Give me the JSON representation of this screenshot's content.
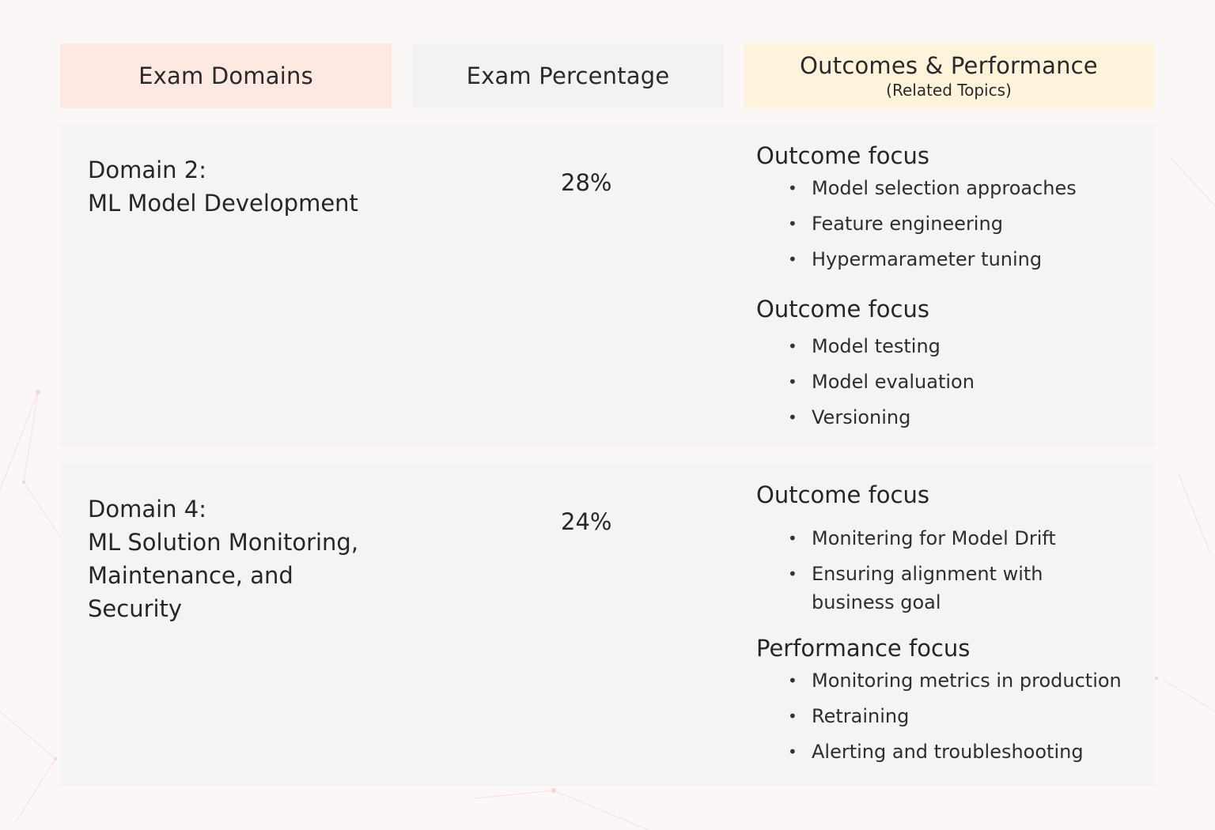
{
  "header": {
    "col1": "Exam Domains",
    "col2": "Exam Percentage",
    "col3_title": "Outcomes & Performance",
    "col3_subtitle": "(Related Topics)"
  },
  "rows": [
    {
      "domain_number": "Domain 2:",
      "domain_title": "ML Model Development",
      "percentage": "28%",
      "groups": [
        {
          "title": "Outcome focus",
          "items": [
            "Model selection approaches",
            "Feature engineering",
            "Hypermarameter tuning"
          ]
        },
        {
          "title": "Outcome focus",
          "items": [
            "Model testing",
            "Model evaluation",
            "Versioning"
          ]
        }
      ]
    },
    {
      "domain_number": "Domain 4:",
      "domain_title": "ML Solution Monitoring, Maintenance, and Security",
      "percentage": "24%",
      "groups": [
        {
          "title": "Outcome focus",
          "items": [
            "Monitering for Model Drift",
            "Ensuring alignment with business goal"
          ]
        },
        {
          "title": "Performance focus",
          "items": [
            "Monitoring metrics in production",
            "Retraining",
            "Alerting and troubleshooting"
          ]
        }
      ]
    }
  ],
  "colors": {
    "header_domains_bg": "#fde9e2",
    "header_percentage_bg": "#f2f2f2",
    "header_outcomes_bg": "#fff3dc",
    "row_bg": "#f4f4f4",
    "page_bg": "#fcf7f7"
  }
}
